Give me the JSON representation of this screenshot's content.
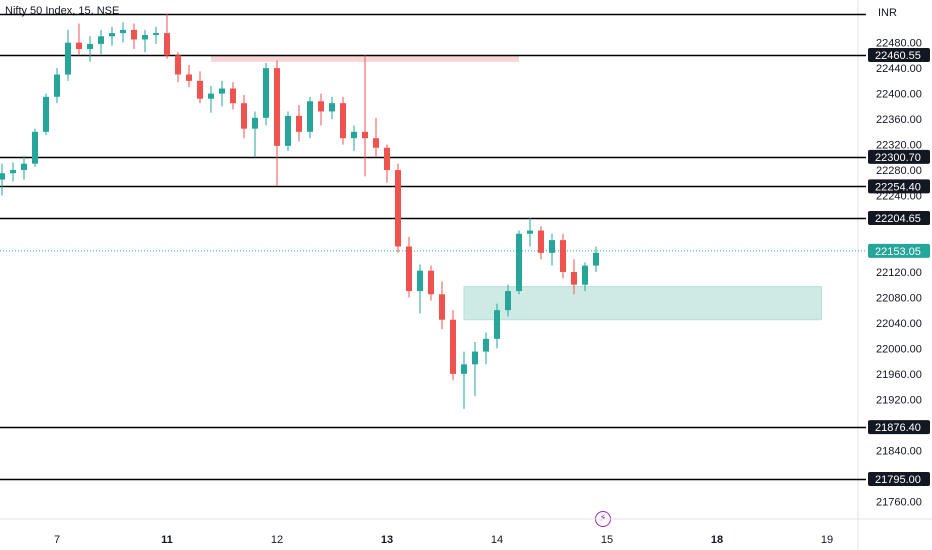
{
  "header": {
    "symbol_title": "Nifty 50 Index, 15, NSE",
    "currency": "INR"
  },
  "event_marker": {
    "icon": "lightning-bolt-icon",
    "color": "#9c27b0"
  },
  "colors": {
    "up": "#26a69a",
    "down": "#ef5350",
    "supply_zone": "#f8d4d6",
    "demand_zone": "#cdeae5",
    "level_line": "#000000"
  },
  "chart_data": {
    "type": "candlestick",
    "title": "Nifty 50 Index, 15, NSE",
    "ylim": [
      21740,
      22525
    ],
    "y_ticks": [
      22480,
      22440,
      22400,
      22360,
      22320,
      22280,
      22240,
      22120,
      22080,
      22040,
      22000,
      21960,
      21920,
      21840,
      21760
    ],
    "x_ticks": [
      {
        "label": "7",
        "bar": 5,
        "bold": false
      },
      {
        "label": "11",
        "bar": 15,
        "bold": true
      },
      {
        "label": "12",
        "bar": 25,
        "bold": false
      },
      {
        "label": "13",
        "bar": 35,
        "bold": true
      },
      {
        "label": "14",
        "bar": 45,
        "bold": false
      },
      {
        "label": "15",
        "bar": 55,
        "bold": false
      },
      {
        "label": "18",
        "bar": 65,
        "bold": true
      },
      {
        "label": "19",
        "bar": 75,
        "bold": false
      }
    ],
    "horizontal_levels": [
      22525.0,
      22460.55,
      22300.7,
      22254.4,
      22204.65,
      21876.4,
      21795.0
    ],
    "level_labels": [
      "22460.55",
      "22300.70",
      "22254.40",
      "22204.65",
      "21876.40",
      "21795.00"
    ],
    "last_price": 22153.05,
    "last_price_label": "22153.05",
    "zones": [
      {
        "type": "supply",
        "x_start": 19.0,
        "x_end": 47.0,
        "y_top": 22460.55,
        "y_bottom": 22450.0
      },
      {
        "type": "demand",
        "x_start": 42.0,
        "x_end": 74.5,
        "y_top": 22097.0,
        "y_bottom": 22045.0
      }
    ],
    "candles": [
      [
        22265,
        22290,
        22240,
        22275
      ],
      [
        22275,
        22292,
        22262,
        22280
      ],
      [
        22280,
        22302,
        22265,
        22290
      ],
      [
        22290,
        22345,
        22285,
        22340
      ],
      [
        22340,
        22400,
        22335,
        22395
      ],
      [
        22395,
        22440,
        22385,
        22430
      ],
      [
        22430,
        22500,
        22420,
        22480
      ],
      [
        22480,
        22510,
        22460,
        22470
      ],
      [
        22470,
        22490,
        22450,
        22478
      ],
      [
        22478,
        22500,
        22462,
        22490
      ],
      [
        22490,
        22505,
        22475,
        22495
      ],
      [
        22495,
        22512,
        22480,
        22500
      ],
      [
        22500,
        22510,
        22470,
        22485
      ],
      [
        22485,
        22500,
        22465,
        22492
      ],
      [
        22492,
        22505,
        22478,
        22495
      ],
      [
        22495,
        22525,
        22455,
        22460
      ],
      [
        22460,
        22465,
        22418,
        22430
      ],
      [
        22430,
        22445,
        22410,
        22420
      ],
      [
        22420,
        22435,
        22385,
        22392
      ],
      [
        22392,
        22412,
        22370,
        22400
      ],
      [
        22400,
        22420,
        22380,
        22408
      ],
      [
        22408,
        22418,
        22375,
        22385
      ],
      [
        22385,
        22398,
        22330,
        22345
      ],
      [
        22345,
        22372,
        22300,
        22362
      ],
      [
        22362,
        22448,
        22350,
        22440
      ],
      [
        22440,
        22452,
        22255,
        22318
      ],
      [
        22318,
        22372,
        22310,
        22365
      ],
      [
        22365,
        22382,
        22325,
        22340
      ],
      [
        22340,
        22395,
        22330,
        22388
      ],
      [
        22388,
        22400,
        22350,
        22372
      ],
      [
        22372,
        22395,
        22360,
        22385
      ],
      [
        22385,
        22395,
        22320,
        22330
      ],
      [
        22330,
        22350,
        22310,
        22340
      ],
      [
        22340,
        22460,
        22270,
        22330
      ],
      [
        22330,
        22362,
        22300,
        22315
      ],
      [
        22315,
        22320,
        22260,
        22280
      ],
      [
        22280,
        22290,
        22150,
        22160
      ],
      [
        22160,
        22175,
        22080,
        22090
      ],
      [
        22090,
        22132,
        22055,
        22122
      ],
      [
        22122,
        22130,
        22075,
        22085
      ],
      [
        22085,
        22105,
        22030,
        22045
      ],
      [
        22045,
        22060,
        21950,
        21960
      ],
      [
        21960,
        21995,
        21905,
        21975
      ],
      [
        21975,
        22010,
        21925,
        21995
      ],
      [
        21995,
        22025,
        21975,
        22015
      ],
      [
        22015,
        22070,
        22000,
        22060
      ],
      [
        22060,
        22100,
        22050,
        22090
      ],
      [
        22090,
        22185,
        22085,
        22180
      ],
      [
        22180,
        22205,
        22160,
        22185
      ],
      [
        22185,
        22192,
        22140,
        22150
      ],
      [
        22150,
        22180,
        22130,
        22170
      ],
      [
        22170,
        22180,
        22110,
        22120
      ],
      [
        22120,
        22140,
        22085,
        22100
      ],
      [
        22100,
        22135,
        22090,
        22130
      ],
      [
        22130,
        22160,
        22120,
        22150
      ]
    ]
  }
}
